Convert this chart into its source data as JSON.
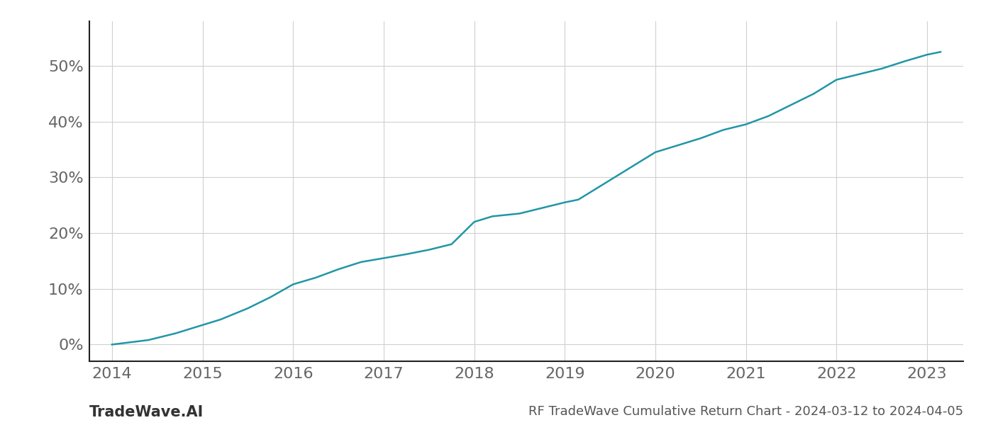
{
  "title": "RF TradeWave Cumulative Return Chart - 2024-03-12 to 2024-04-05",
  "watermark": "TradeWave.AI",
  "line_color": "#2196a6",
  "line_width": 1.8,
  "background_color": "#ffffff",
  "grid_color": "#d0d0d0",
  "x_years": [
    2014.0,
    2014.15,
    2014.4,
    2014.7,
    2015.0,
    2015.2,
    2015.5,
    2015.75,
    2016.0,
    2016.25,
    2016.5,
    2016.75,
    2017.0,
    2017.25,
    2017.5,
    2017.75,
    2018.0,
    2018.2,
    2018.5,
    2018.75,
    2019.0,
    2019.15,
    2019.4,
    2019.7,
    2020.0,
    2020.2,
    2020.5,
    2020.75,
    2021.0,
    2021.25,
    2021.5,
    2021.75,
    2022.0,
    2022.25,
    2022.5,
    2022.75,
    2023.0,
    2023.15
  ],
  "y_values": [
    0.0,
    0.3,
    0.8,
    2.0,
    3.5,
    4.5,
    6.5,
    8.5,
    10.8,
    12.0,
    13.5,
    14.8,
    15.5,
    16.2,
    17.0,
    18.0,
    22.0,
    23.0,
    23.5,
    24.5,
    25.5,
    26.0,
    28.5,
    31.5,
    34.5,
    35.5,
    37.0,
    38.5,
    39.5,
    41.0,
    43.0,
    45.0,
    47.5,
    48.5,
    49.5,
    50.8,
    52.0,
    52.5
  ],
  "xtick_labels": [
    "2014",
    "2015",
    "2016",
    "2017",
    "2018",
    "2019",
    "2020",
    "2021",
    "2022",
    "2023"
  ],
  "xtick_positions": [
    2014,
    2015,
    2016,
    2017,
    2018,
    2019,
    2020,
    2021,
    2022,
    2023
  ],
  "ytick_labels": [
    "0%",
    "10%",
    "20%",
    "30%",
    "40%",
    "50%"
  ],
  "ytick_positions": [
    0,
    10,
    20,
    30,
    40,
    50
  ],
  "xlim": [
    2013.75,
    2023.4
  ],
  "ylim": [
    -3,
    58
  ],
  "title_fontsize": 13,
  "watermark_fontsize": 15,
  "tick_fontsize": 16,
  "left_spine_color": "#222222",
  "bottom_spine_color": "#222222"
}
